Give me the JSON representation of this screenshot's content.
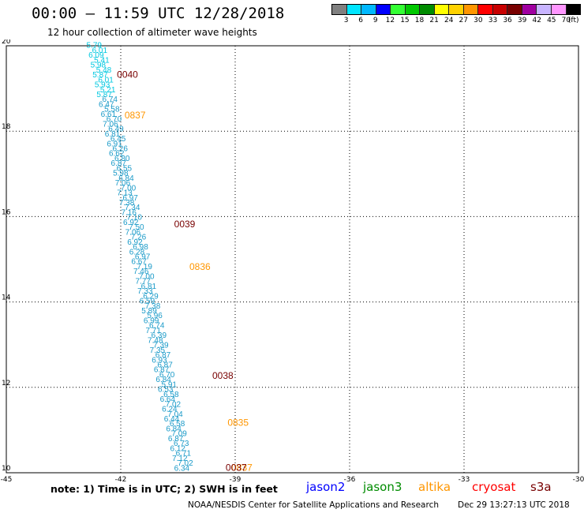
{
  "header": {
    "title": "00:00 – 11:59 UTC 12/28/2018",
    "subtitle": "12 hour collection of altimeter wave heights"
  },
  "color_scale": {
    "colors": [
      "#808080",
      "#00e5ff",
      "#00b8ff",
      "#0000ff",
      "#33ff33",
      "#00c800",
      "#008c00",
      "#ffff00",
      "#ffd200",
      "#ff9600",
      "#ff0000",
      "#c80000",
      "#780000",
      "#a000a0",
      "#c8b4ff",
      "#ff96ff",
      "#000000"
    ],
    "labels": [
      "3",
      "6",
      "9",
      "12",
      "15",
      "18",
      "21",
      "24",
      "27",
      "30",
      "33",
      "36",
      "39",
      "42",
      "45",
      "70",
      "(ft)"
    ]
  },
  "map": {
    "lon_ticks": [
      "-45",
      "-42",
      "-39",
      "-36",
      "-33",
      "-30"
    ],
    "lat_ticks": [
      "10",
      "12",
      "14",
      "16",
      "18",
      "20"
    ],
    "lon_range": [
      -45,
      -30
    ],
    "lat_range": [
      10,
      20
    ]
  },
  "track": {
    "satellite": "jason2",
    "color_cyan": "#00c8e0",
    "color_blue": "#1a9ac8",
    "readings": [
      "5.79",
      "6.01",
      "6.09",
      "5.41",
      "5.98",
      "5.48",
      "5.87",
      "6.01",
      "5.93",
      "5.21",
      "5.87",
      "6.74",
      "6.47",
      "5.58",
      "6.61",
      "6.70",
      "7.06",
      "6.49",
      "6.81",
      "6.45",
      "6.91",
      "6.26",
      "6.62",
      "6.80",
      "6.87",
      "6.55",
      "5.98",
      "6.84",
      "7.06",
      "7.00",
      "7.13",
      "6.97",
      "7.38",
      "7.34",
      "7.16",
      "7.10",
      "6.92",
      "7.50",
      "7.06",
      "7.26",
      "6.92",
      "6.98",
      "6.28",
      "6.97",
      "6.67",
      "7.19",
      "7.46",
      "7.00",
      "7.77",
      "6.81",
      "7.33",
      "6.29",
      "6.59",
      "7.38",
      "5.89",
      "5.96",
      "6.99",
      "6.74",
      "7.71",
      "6.39",
      "7.48",
      "7.39",
      "7.35",
      "6.87",
      "6.93",
      "6.87",
      "6.87",
      "6.70",
      "6.84",
      "5.91",
      "6.53",
      "6.58",
      "6.64",
      "7.02",
      "6.24",
      "7.04",
      "6.44",
      "6.58",
      "6.84",
      "7.09",
      "6.87",
      "6.73",
      "6.12",
      "6.71",
      "7.12",
      "7.02",
      "6.34"
    ]
  },
  "passes": [
    {
      "label": "0040",
      "color": "#780000",
      "lon": -42.1,
      "lat": 19.25
    },
    {
      "label": "0837",
      "color": "#ff9600",
      "lon": -41.9,
      "lat": 18.3
    },
    {
      "label": "0039",
      "color": "#780000",
      "lon": -40.6,
      "lat": 15.75
    },
    {
      "label": "0836",
      "color": "#ff9600",
      "lon": -40.2,
      "lat": 14.75
    },
    {
      "label": "0038",
      "color": "#780000",
      "lon": -39.6,
      "lat": 12.2
    },
    {
      "label": "0835",
      "color": "#ff9600",
      "lon": -39.2,
      "lat": 11.1
    },
    {
      "label": "0837",
      "color": "#ff9600",
      "lon": -39.1,
      "lat": 10.05
    },
    {
      "label": "0037",
      "color": "#780000",
      "lon": -39.25,
      "lat": 10.05
    }
  ],
  "footer": {
    "note": "note: 1) Time is in UTC; 2) SWH is in feet",
    "legend": [
      {
        "name": "jason2",
        "color": "#0000ff"
      },
      {
        "name": "jason3",
        "color": "#008c00"
      },
      {
        "name": "altika",
        "color": "#ff9600"
      },
      {
        "name": "cryosat",
        "color": "#ff0000"
      },
      {
        "name": "s3a",
        "color": "#780000"
      }
    ],
    "credit": "NOAA/NESDIS Center for Satellite Applications and Research",
    "timestamp": "Dec 29 13:27:13 UTC 2018"
  }
}
